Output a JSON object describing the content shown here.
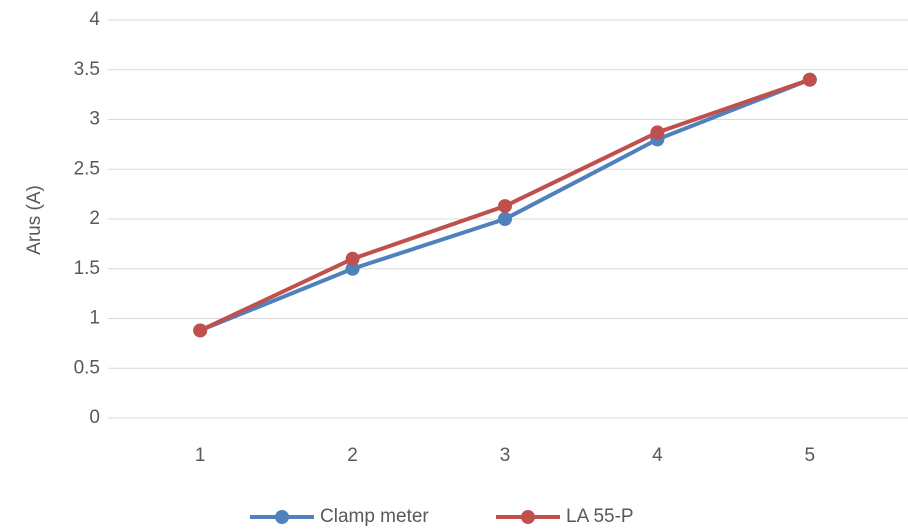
{
  "chart_data": {
    "type": "line",
    "y_label": "Arus (A)",
    "categories": [
      "1",
      "2",
      "3",
      "4",
      "5"
    ],
    "series": [
      {
        "name": "Clamp meter",
        "color": "#4f81bd",
        "values": [
          0.88,
          1.5,
          2.0,
          2.8,
          3.4
        ]
      },
      {
        "name": "LA 55-P",
        "color": "#c0504d",
        "values": [
          0.88,
          1.6,
          2.13,
          2.87,
          3.4
        ]
      }
    ],
    "ylim": [
      0,
      4
    ],
    "yticks": [
      0,
      0.5,
      1,
      1.5,
      2,
      2.5,
      3,
      3.5,
      4
    ],
    "grid": true,
    "legend": "bottom"
  }
}
